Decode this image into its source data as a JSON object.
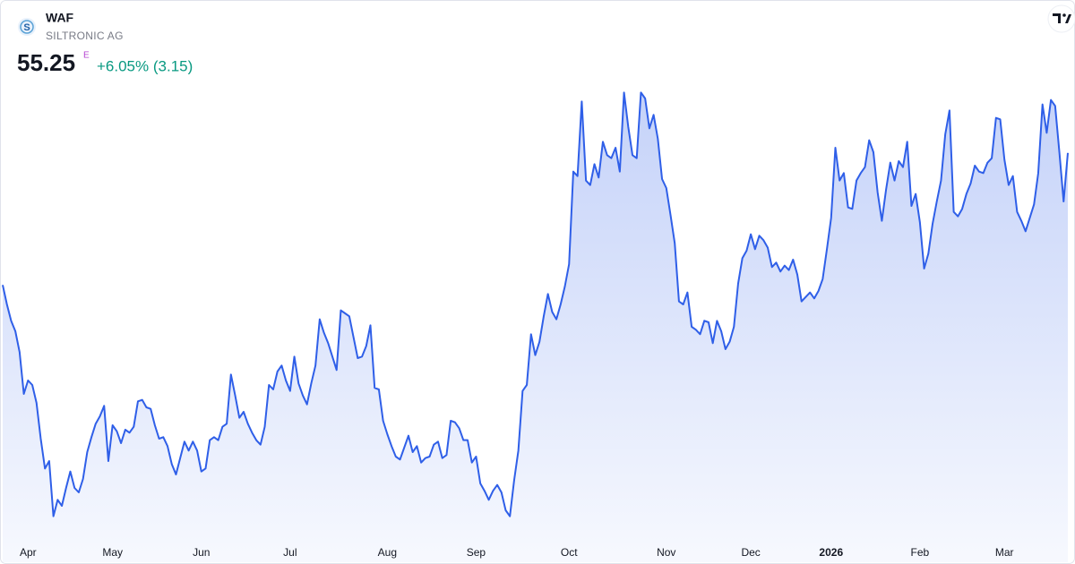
{
  "header": {
    "symbol": "WAF",
    "company": "SILTRONIC AG",
    "price": "55.25",
    "price_flag": "E",
    "change": "+6.05% (3.15)"
  },
  "chart_data": {
    "type": "area",
    "color": "#2f5fe8",
    "values": [
      46.4,
      45.1,
      44.0,
      43.3,
      41.9,
      39.1,
      40.0,
      39.7,
      38.5,
      36.1,
      34.1,
      34.6,
      30.9,
      32.0,
      31.6,
      32.8,
      33.9,
      32.8,
      32.5,
      33.4,
      35.2,
      36.2,
      37.1,
      37.6,
      38.3,
      34.6,
      37.0,
      36.6,
      35.8,
      36.7,
      36.5,
      36.9,
      38.6,
      38.7,
      38.2,
      38.1,
      37.0,
      36.1,
      36.2,
      35.6,
      34.4,
      33.7,
      34.8,
      35.9,
      35.3,
      35.9,
      35.3,
      33.9,
      34.1,
      36.0,
      36.2,
      36.0,
      36.9,
      37.1,
      40.4,
      39.0,
      37.5,
      37.9,
      37.1,
      36.5,
      36.0,
      35.7,
      36.9,
      39.7,
      39.4,
      40.6,
      41.0,
      40.0,
      39.3,
      41.6,
      39.8,
      39.0,
      38.4,
      39.8,
      41.0,
      44.1,
      43.2,
      42.5,
      41.6,
      40.7,
      44.7,
      44.5,
      44.3,
      42.9,
      41.5,
      41.6,
      42.3,
      43.7,
      39.5,
      39.4,
      37.3,
      36.4,
      35.6,
      34.9,
      34.7,
      35.5,
      36.3,
      35.2,
      35.6,
      34.5,
      34.8,
      34.9,
      35.7,
      35.9,
      34.8,
      35.0,
      37.3,
      37.2,
      36.8,
      36.0,
      36.0,
      34.5,
      34.9,
      33.1,
      32.6,
      32.0,
      32.6,
      33.0,
      32.5,
      31.3,
      30.9,
      33.3,
      35.3,
      39.3,
      39.7,
      43.1,
      41.7,
      42.6,
      44.3,
      45.8,
      44.6,
      44.1,
      45.1,
      46.3,
      47.8,
      54.0,
      53.7,
      58.7,
      53.4,
      53.1,
      54.5,
      53.6,
      56.0,
      55.1,
      54.9,
      55.6,
      54.0,
      59.3,
      57.0,
      55.1,
      54.9,
      59.3,
      58.9,
      56.9,
      57.8,
      56.2,
      53.5,
      52.9,
      51.1,
      49.2,
      45.3,
      45.1,
      45.9,
      43.6,
      43.4,
      43.1,
      44.0,
      43.9,
      42.5,
      44.0,
      43.3,
      42.1,
      42.6,
      43.6,
      46.5,
      48.2,
      48.7,
      49.8,
      48.8,
      49.7,
      49.4,
      48.9,
      47.6,
      47.9,
      47.3,
      47.7,
      47.4,
      48.1,
      47.1,
      45.3,
      45.6,
      45.9,
      45.5,
      46.0,
      46.8,
      48.8,
      50.9,
      55.6,
      53.4,
      53.9,
      51.6,
      51.5,
      53.4,
      53.9,
      54.3,
      56.1,
      55.3,
      52.6,
      50.7,
      52.8,
      54.6,
      53.4,
      54.7,
      54.3,
      56.0,
      51.7,
      52.5,
      50.6,
      47.5,
      48.5,
      50.5,
      52.0,
      53.4,
      56.5,
      58.1,
      51.3,
      51.0,
      51.5,
      52.5,
      53.2,
      54.4,
      54.0,
      53.9,
      54.6,
      54.9,
      57.6,
      57.5,
      54.8,
      53.1,
      53.7,
      51.3,
      50.7,
      50.0,
      50.9,
      51.8,
      53.9,
      58.5,
      56.6,
      58.8,
      58.4,
      55.3,
      52.0,
      55.25
    ],
    "xlim": [
      0,
      252
    ],
    "ylim": [
      29.5,
      60.1
    ],
    "xticks": [
      {
        "value": 6,
        "label": "Apr"
      },
      {
        "value": 26,
        "label": "May"
      },
      {
        "value": 47,
        "label": "Jun"
      },
      {
        "value": 68,
        "label": "Jul"
      },
      {
        "value": 91,
        "label": "Aug"
      },
      {
        "value": 112,
        "label": "Sep"
      },
      {
        "value": 134,
        "label": "Oct"
      },
      {
        "value": 157,
        "label": "Nov"
      },
      {
        "value": 177,
        "label": "Dec"
      },
      {
        "value": 196,
        "label": "2026"
      },
      {
        "value": 217,
        "label": "Feb"
      },
      {
        "value": 237,
        "label": "Mar"
      }
    ]
  }
}
